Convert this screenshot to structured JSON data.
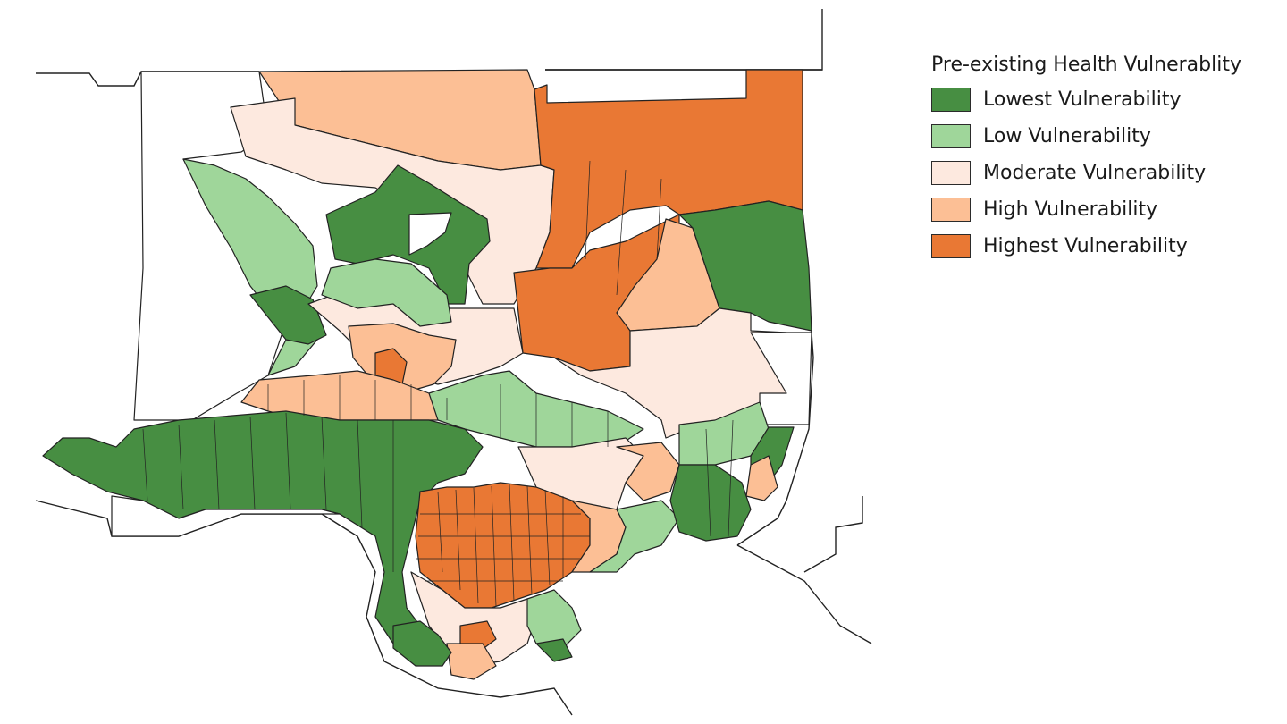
{
  "legend": {
    "title": "Pre-existing Health Vulnerablity",
    "classes": [
      {
        "label": "Lowest Vulnerability",
        "color": "#478e42"
      },
      {
        "label": "Low Vulnerability",
        "color": "#9fd69a"
      },
      {
        "label": "Moderate Vulnerability",
        "color": "#fde9df"
      },
      {
        "label": "High Vulnerability",
        "color": "#fcbf95"
      },
      {
        "label": "Highest Vulnerability",
        "color": "#e97834"
      }
    ]
  }
}
